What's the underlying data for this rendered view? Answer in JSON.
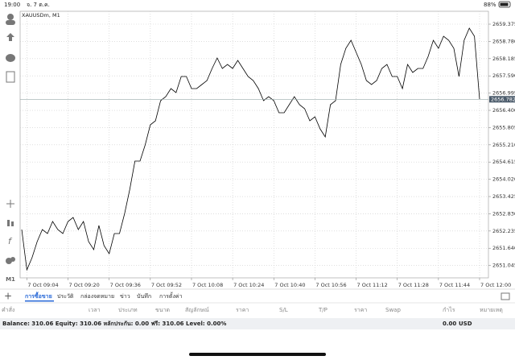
{
  "status_bar": {
    "time": "19:00",
    "date": "จ. 7 ต.ค.",
    "battery": "88%"
  },
  "sidebar": {
    "timeframe": "M1"
  },
  "chart_data": {
    "type": "line",
    "title": "XAUUSDm, M1",
    "color": "#000000",
    "grid": true,
    "x": [
      "7 Oct 09:02",
      "7 Oct 09:04",
      "7 Oct 09:06",
      "7 Oct 09:08",
      "7 Oct 09:10",
      "7 Oct 09:12",
      "7 Oct 09:14",
      "7 Oct 09:16",
      "7 Oct 09:18",
      "7 Oct 09:20",
      "7 Oct 09:22",
      "7 Oct 09:24",
      "7 Oct 09:26",
      "7 Oct 09:28",
      "7 Oct 09:30",
      "7 Oct 09:32",
      "7 Oct 09:34",
      "7 Oct 09:36",
      "7 Oct 09:38",
      "7 Oct 09:40",
      "7 Oct 09:42",
      "7 Oct 09:44",
      "7 Oct 09:46",
      "7 Oct 09:48",
      "7 Oct 09:50",
      "7 Oct 09:52",
      "7 Oct 09:54",
      "7 Oct 09:56",
      "7 Oct 09:58",
      "7 Oct 10:00",
      "7 Oct 10:02",
      "7 Oct 10:04",
      "7 Oct 10:06",
      "7 Oct 10:08",
      "7 Oct 10:10",
      "7 Oct 10:12",
      "7 Oct 10:14",
      "7 Oct 10:16",
      "7 Oct 10:18",
      "7 Oct 10:20",
      "7 Oct 10:22",
      "7 Oct 10:24",
      "7 Oct 10:26",
      "7 Oct 10:28",
      "7 Oct 10:30",
      "7 Oct 10:32",
      "7 Oct 10:34",
      "7 Oct 10:36",
      "7 Oct 10:38",
      "7 Oct 10:40",
      "7 Oct 10:42",
      "7 Oct 10:44",
      "7 Oct 10:46",
      "7 Oct 10:48",
      "7 Oct 10:50",
      "7 Oct 10:52",
      "7 Oct 10:54",
      "7 Oct 10:56",
      "7 Oct 10:58",
      "7 Oct 11:00",
      "7 Oct 11:02",
      "7 Oct 11:04",
      "7 Oct 11:06",
      "7 Oct 11:08",
      "7 Oct 11:10",
      "7 Oct 11:12",
      "7 Oct 11:14",
      "7 Oct 11:16",
      "7 Oct 11:18",
      "7 Oct 11:20",
      "7 Oct 11:22",
      "7 Oct 11:24",
      "7 Oct 11:26",
      "7 Oct 11:28",
      "7 Oct 11:30",
      "7 Oct 11:32",
      "7 Oct 11:34",
      "7 Oct 11:36",
      "7 Oct 11:38",
      "7 Oct 11:40",
      "7 Oct 11:42",
      "7 Oct 11:44",
      "7 Oct 11:46",
      "7 Oct 11:48",
      "7 Oct 11:50",
      "7 Oct 11:52",
      "7 Oct 11:54",
      "7 Oct 11:56",
      "7 Oct 11:58",
      "7 Oct 12:00"
    ],
    "values": [
      2652.286,
      2650.896,
      2651.313,
      2651.869,
      2652.286,
      2652.147,
      2652.564,
      2652.286,
      2652.147,
      2652.564,
      2652.703,
      2652.286,
      2652.564,
      2651.869,
      2651.591,
      2652.425,
      2651.73,
      2651.452,
      2652.147,
      2652.147,
      2652.842,
      2653.676,
      2654.649,
      2654.649,
      2655.205,
      2655.9,
      2656.039,
      2656.734,
      2656.873,
      2657.151,
      2657.012,
      2657.568,
      2657.568,
      2657.151,
      2657.151,
      2657.29,
      2657.429,
      2657.846,
      2658.207,
      2657.846,
      2657.985,
      2657.846,
      2658.124,
      2657.846,
      2657.568,
      2657.429,
      2657.151,
      2656.734,
      2656.873,
      2656.734,
      2656.317,
      2656.317,
      2656.595,
      2656.873,
      2656.595,
      2656.456,
      2656.039,
      2656.178,
      2655.761,
      2655.483,
      2656.595,
      2656.734,
      2657.985,
      2658.541,
      2658.819,
      2658.402,
      2657.985,
      2657.429,
      2657.29,
      2657.429,
      2657.846,
      2657.985,
      2657.568,
      2657.568,
      2657.151,
      2657.985,
      2657.707,
      2657.846,
      2657.846,
      2658.263,
      2658.819,
      2658.541,
      2658.958,
      2658.819,
      2658.541,
      2657.568,
      2658.819,
      2659.236,
      2658.958,
      2656.782
    ],
    "xticks": [
      "7 Oct 09:04",
      "7 Oct 09:20",
      "7 Oct 09:36",
      "7 Oct 09:52",
      "7 Oct 10:08",
      "7 Oct 10:24",
      "7 Oct 10:40",
      "7 Oct 10:56",
      "7 Oct 11:12",
      "7 Oct 11:28",
      "7 Oct 11:44",
      "7 Oct 12:00"
    ],
    "ylim": [
      2650.618,
      2659.82
    ],
    "yticks": [
      2659.375,
      {
        "value": 2658.78,
        "label": "2658.780"
      },
      2658.185,
      {
        "value": 2657.59,
        "label": "2657.590"
      },
      2656.995,
      {
        "value": 2656.4,
        "label": "2656.400"
      },
      2655.805,
      {
        "value": 2655.21,
        "label": "2655.210"
      },
      2654.615,
      {
        "value": 2654.02,
        "label": "2654.020"
      },
      2653.425,
      {
        "value": 2652.83,
        "label": "2652.830"
      },
      2652.235,
      {
        "value": 2651.64,
        "label": "2651.640"
      },
      2651.045
    ],
    "last_price": 2656.782
  },
  "tabs": [
    "การซื้อขาย",
    "ประวัติ",
    "กล่องจดหมาย",
    "ข่าว",
    "บันทึก",
    "การตั้งค่า"
  ],
  "active_tab": 0,
  "table": {
    "columns": [
      "คำสั่ง",
      "เวลา",
      "ประเภท",
      "ขนาด",
      "สัญลักษณ์",
      "ราคา",
      "S/L",
      "T/P",
      "ราคา",
      "Swap",
      "กำไร",
      "หมายเหตุ"
    ]
  },
  "account": {
    "summary": "Balance: 310.06 Equity: 310.06 หลักประกัน: 0.00 ฟรี: 310.06 Level: 0.00%",
    "total": "0.00",
    "currency": "USD"
  }
}
